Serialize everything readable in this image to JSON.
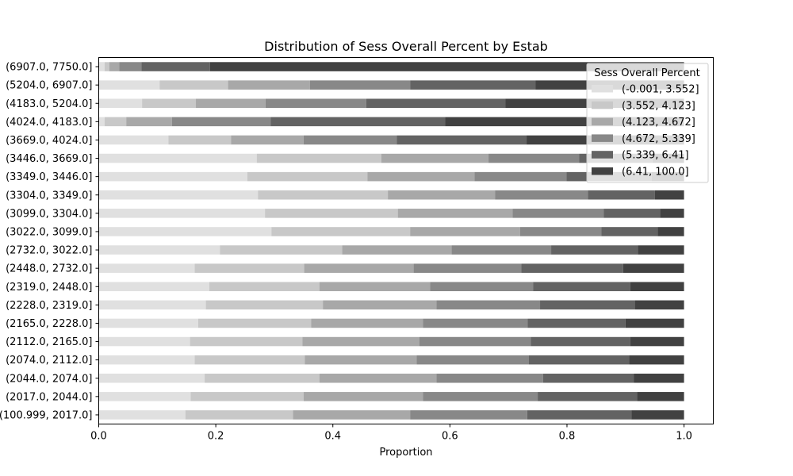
{
  "chart_data": {
    "type": "bar",
    "orientation": "horizontal",
    "stacked": true,
    "title": "Distribution of Sess Overall Percent by Estab",
    "xlabel": "Proportion",
    "ylabel": "",
    "xlim": [
      0,
      1.05
    ],
    "xticks": [
      "0.0",
      "0.2",
      "0.4",
      "0.6",
      "0.8",
      "1.0"
    ],
    "xtick_values": [
      0,
      0.2,
      0.4,
      0.6,
      0.8,
      1.0
    ],
    "grid": false,
    "legend": {
      "title": "Sess Overall Percent",
      "placement": "upper right"
    },
    "categories": [
      "(100.999, 2017.0]",
      "(2017.0, 2044.0]",
      "(2044.0, 2074.0]",
      "(2074.0, 2112.0]",
      "(2112.0, 2165.0]",
      "(2165.0, 2228.0]",
      "(2228.0, 2319.0]",
      "(2319.0, 2448.0]",
      "(2448.0, 2732.0]",
      "(2732.0, 3022.0]",
      "(3022.0, 3099.0]",
      "(3099.0, 3304.0]",
      "(3304.0, 3349.0]",
      "(3349.0, 3446.0]",
      "(3446.0, 3669.0]",
      "(3669.0, 4024.0]",
      "(4024.0, 4183.0]",
      "(4183.0, 5204.0]",
      "(5204.0, 6907.0]",
      "(6907.0, 7750.0]"
    ],
    "series": [
      {
        "name": "(-0.001, 3.552]",
        "color": "#e0e0e0",
        "values": [
          0.148,
          0.157,
          0.181,
          0.164,
          0.156,
          0.17,
          0.183,
          0.189,
          0.164,
          0.207,
          0.295,
          0.284,
          0.272,
          0.254,
          0.27,
          0.119,
          0.01,
          0.074,
          0.104,
          0.01
        ]
      },
      {
        "name": "(3.552, 4.123]",
        "color": "#c8c8c8",
        "values": [
          0.184,
          0.193,
          0.196,
          0.188,
          0.192,
          0.193,
          0.2,
          0.188,
          0.187,
          0.209,
          0.237,
          0.227,
          0.222,
          0.205,
          0.213,
          0.107,
          0.037,
          0.092,
          0.117,
          0.008
        ]
      },
      {
        "name": "(4.123, 4.672]",
        "color": "#a8a8a8",
        "values": [
          0.2,
          0.204,
          0.2,
          0.191,
          0.2,
          0.191,
          0.194,
          0.189,
          0.187,
          0.187,
          0.188,
          0.196,
          0.183,
          0.183,
          0.183,
          0.124,
          0.078,
          0.119,
          0.14,
          0.017
        ]
      },
      {
        "name": "(4.672, 5.339]",
        "color": "#888888",
        "values": [
          0.2,
          0.196,
          0.182,
          0.192,
          0.19,
          0.179,
          0.177,
          0.176,
          0.184,
          0.17,
          0.139,
          0.156,
          0.159,
          0.157,
          0.155,
          0.159,
          0.169,
          0.172,
          0.171,
          0.038
        ]
      },
      {
        "name": "(5.339, 6.41]",
        "color": "#636363",
        "values": [
          0.178,
          0.17,
          0.155,
          0.171,
          0.17,
          0.167,
          0.162,
          0.166,
          0.174,
          0.148,
          0.096,
          0.096,
          0.114,
          0.146,
          0.125,
          0.222,
          0.298,
          0.238,
          0.214,
          0.117
        ]
      },
      {
        "name": "(6.41, 100.0]",
        "color": "#414141",
        "values": [
          0.09,
          0.08,
          0.086,
          0.094,
          0.092,
          0.1,
          0.084,
          0.092,
          0.104,
          0.079,
          0.045,
          0.041,
          0.05,
          0.055,
          0.054,
          0.269,
          0.408,
          0.305,
          0.254,
          0.81
        ]
      }
    ]
  }
}
